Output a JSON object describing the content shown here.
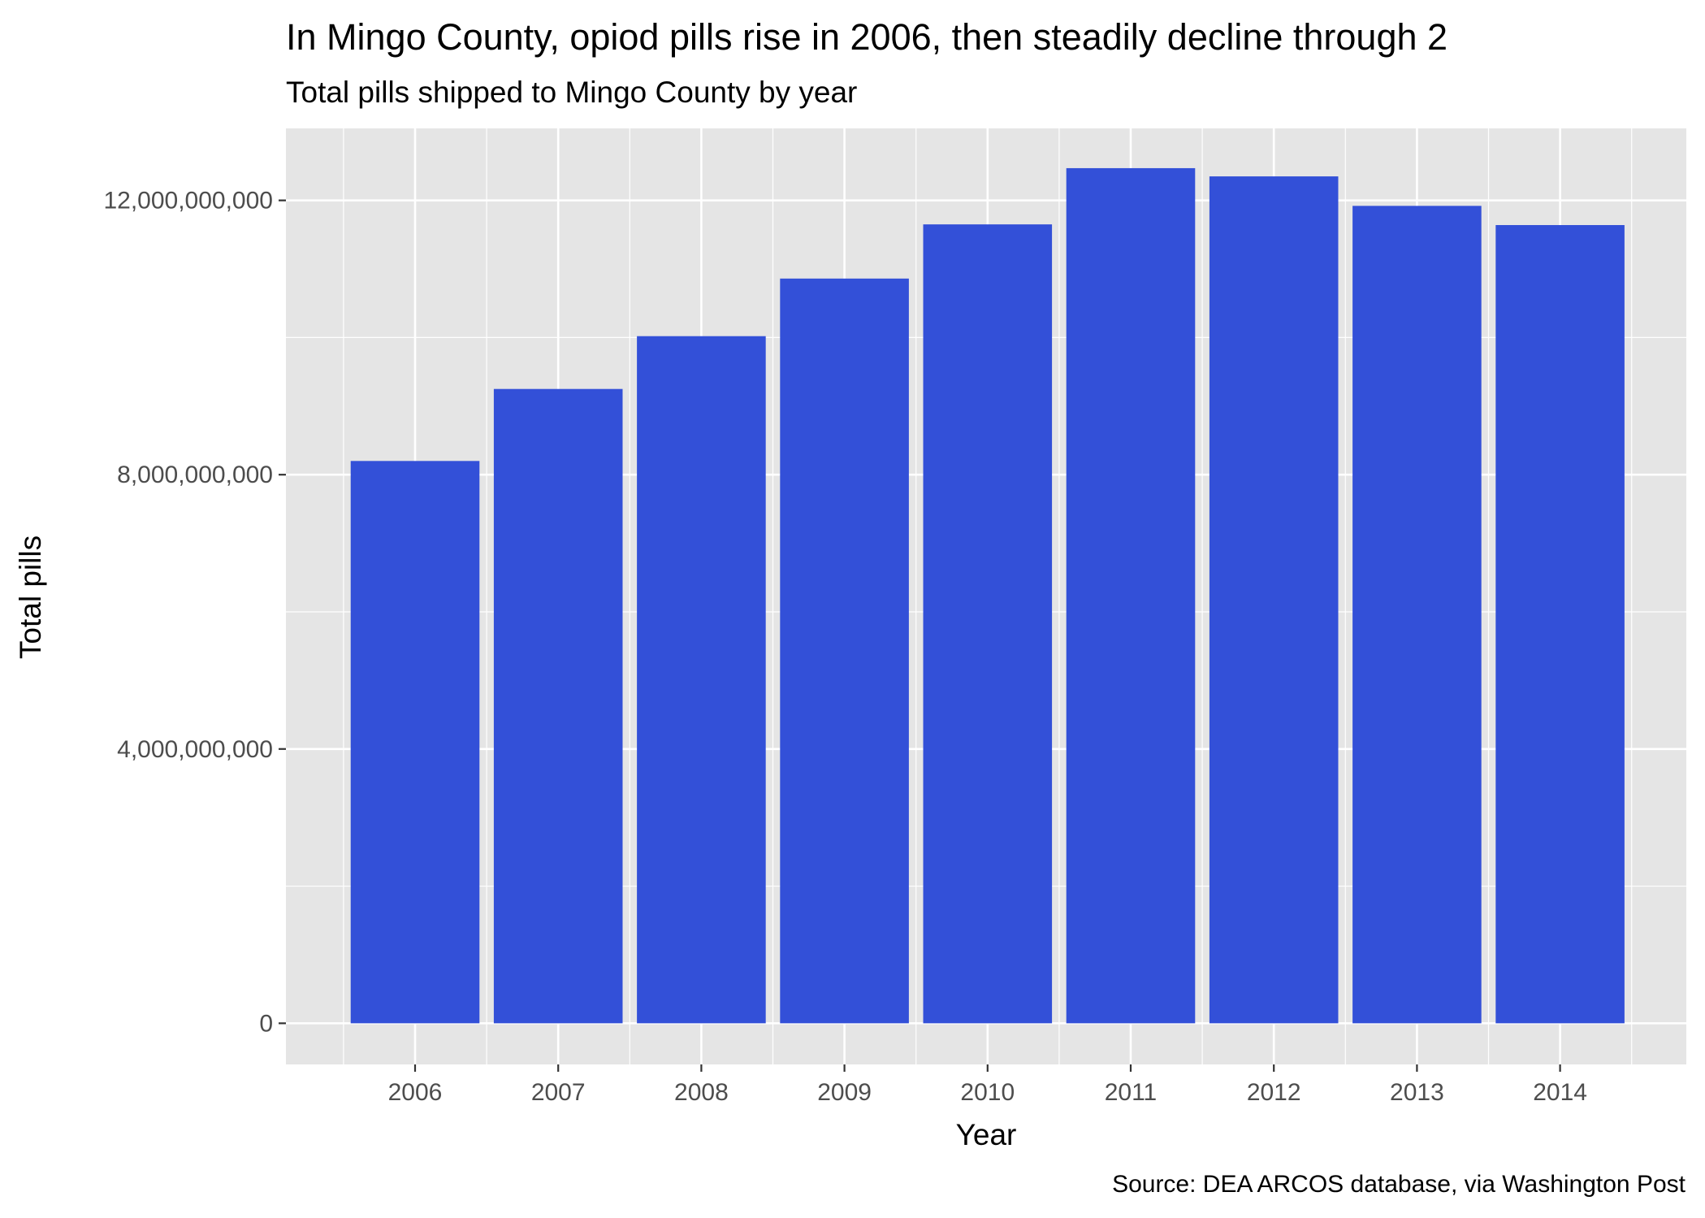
{
  "chart_data": {
    "type": "bar",
    "title": "In Mingo County, opiod pills rise in 2006, then steadily decline through 2",
    "subtitle": "Total pills shipped to Mingo County by year",
    "xlabel": "Year",
    "ylabel": "Total pills",
    "caption": "Source: DEA ARCOS database, via Washington Post",
    "categories": [
      "2006",
      "2007",
      "2008",
      "2009",
      "2010",
      "2011",
      "2012",
      "2013",
      "2014"
    ],
    "values": [
      8200000000,
      9250000000,
      10020000000,
      10860000000,
      11650000000,
      12470000000,
      12350000000,
      11920000000,
      11640000000
    ],
    "ylim": [
      -600000000,
      13050000000
    ],
    "y_ticks": [
      0,
      4000000000,
      8000000000,
      12000000000
    ],
    "y_tick_labels": [
      "0",
      "4,000,000,000",
      "8,000,000,000",
      "12,000,000,000"
    ],
    "grid": true,
    "legend": "none",
    "colors": {
      "bar": "#3350d8",
      "panel_background": "#e5e5e5",
      "gridline": "#ffffff"
    }
  }
}
